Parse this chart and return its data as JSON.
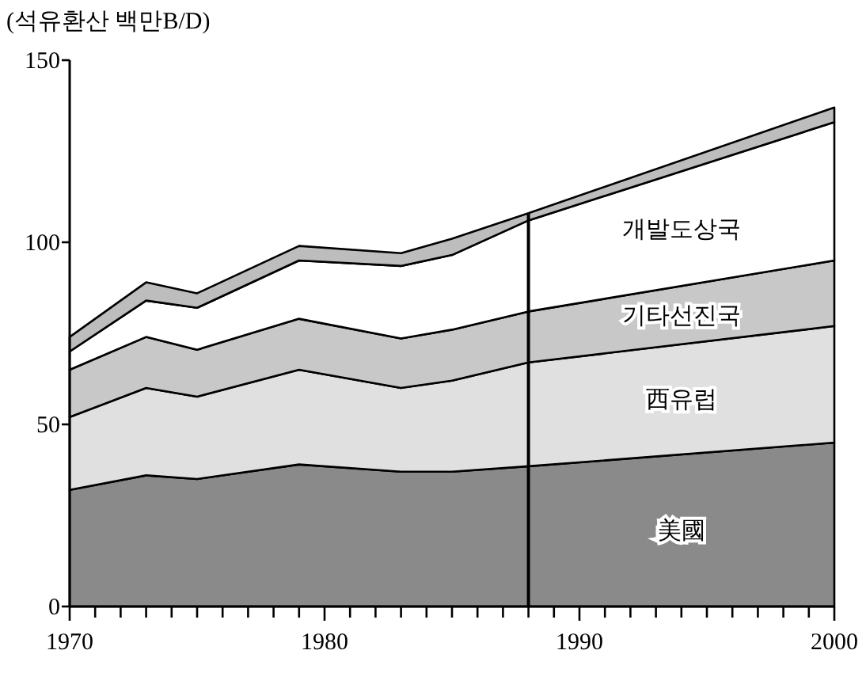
{
  "chart_data": {
    "type": "area",
    "stacked": true,
    "ylabel": "(석유환산 백만B/D)",
    "x": [
      1970,
      1973,
      1975,
      1979,
      1983,
      1985,
      1988,
      2000
    ],
    "series": [
      {
        "name": "美國",
        "color": "#8a8a8a",
        "values": [
          32,
          36,
          35,
          39,
          37,
          37,
          38.5,
          45
        ]
      },
      {
        "name": "西유럽",
        "color": "#e0e0e0",
        "values": [
          20,
          24,
          22.6,
          26,
          23,
          25,
          28.5,
          32
        ]
      },
      {
        "name": "기타선진국",
        "color": "#c8c8c8",
        "values": [
          13,
          14,
          12.9,
          14,
          13.6,
          14,
          14,
          18
        ]
      },
      {
        "name": "개발도상국",
        "color": "#ffffff",
        "values": [
          5,
          10,
          11.5,
          16,
          19.9,
          20.5,
          25,
          38
        ]
      },
      {
        "color": "#bdbdbd",
        "values": [
          4,
          5,
          4,
          4,
          3.5,
          4.5,
          2,
          4
        ]
      }
    ],
    "xlim": [
      1970,
      2000
    ],
    "ylim": [
      0,
      150
    ],
    "xticks": [
      1970,
      {
        "value": 1971,
        "label": null
      },
      {
        "value": 1972,
        "label": null
      },
      {
        "value": 1973,
        "label": null
      },
      {
        "value": 1974,
        "label": null
      },
      {
        "value": 1975,
        "label": null
      },
      {
        "value": 1976,
        "label": null
      },
      {
        "value": 1977,
        "label": null
      },
      {
        "value": 1978,
        "label": null
      },
      {
        "value": 1979,
        "label": null
      },
      1980,
      {
        "value": 1981,
        "label": null
      },
      {
        "value": 1982,
        "label": null
      },
      {
        "value": 1983,
        "label": null
      },
      {
        "value": 1984,
        "label": null
      },
      {
        "value": 1985,
        "label": null
      },
      {
        "value": 1986,
        "label": null
      },
      {
        "value": 1987,
        "label": null
      },
      {
        "value": 1988,
        "label": null
      },
      {
        "value": 1989,
        "label": null
      },
      1990,
      {
        "value": 1991,
        "label": null
      },
      {
        "value": 1992,
        "label": null
      },
      {
        "value": 1993,
        "label": null
      },
      {
        "value": 1994,
        "label": null
      },
      {
        "value": 1995,
        "label": null
      },
      {
        "value": 1996,
        "label": null
      },
      {
        "value": 1997,
        "label": null
      },
      {
        "value": 1998,
        "label": null
      },
      {
        "value": 1999,
        "label": null
      },
      2000
    ],
    "yticks": [
      0,
      50,
      100,
      150
    ],
    "ref_lines": [
      {
        "axis": "x",
        "value": 1988,
        "color": "#000000"
      }
    ]
  }
}
